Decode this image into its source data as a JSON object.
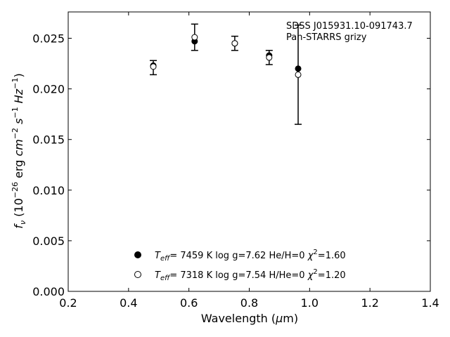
{
  "chart_data": {
    "type": "scatter",
    "title": "",
    "xlabel": "Wavelength (μm)",
    "ylabel": "f_ν (10^-26 erg cm^-2 s^-1 Hz^-1)",
    "xlim": [
      0.2,
      1.4
    ],
    "ylim": [
      0.0,
      0.0276
    ],
    "x_ticks": [
      0.2,
      0.4,
      0.6,
      0.8,
      1.0,
      1.2,
      1.4
    ],
    "x_tick_labels": [
      "0.2",
      "0.4",
      "0.6",
      "0.8",
      "1.0",
      "1.2",
      "1.4"
    ],
    "y_ticks": [
      0.0,
      0.005,
      0.01,
      0.015,
      0.02,
      0.025
    ],
    "y_tick_labels": [
      "0.000",
      "0.005",
      "0.010",
      "0.015",
      "0.020",
      "0.025"
    ],
    "grid": false,
    "annotation": [
      "SDSS J015931.10-091743.7",
      "Pan-STARRS grizy"
    ],
    "observed": {
      "x": [
        0.482,
        0.619,
        0.752,
        0.866,
        0.962
      ],
      "y": [
        0.0221,
        0.0251,
        0.0245,
        0.0231,
        0.0214
      ],
      "err": [
        0.0007,
        0.0013,
        0.0007,
        0.0007,
        0.0049
      ]
    },
    "series": [
      {
        "name": "T_eff= 7459 K log g=7.62 He/H=0 χ²=1.60",
        "marker": "filled-circle",
        "x": [
          0.482,
          0.619,
          0.752,
          0.866,
          0.962
        ],
        "y": [
          0.0223,
          0.0247,
          0.0245,
          0.0233,
          0.022
        ]
      },
      {
        "name": "T_eff= 7318 K log g=7.54 H/He=0 χ²=1.20",
        "marker": "open-circle",
        "x": [
          0.482,
          0.619,
          0.752,
          0.866,
          0.962
        ],
        "y": [
          0.0222,
          0.0251,
          0.0245,
          0.0231,
          0.0214
        ]
      }
    ],
    "legend": {
      "placement": "lower-center",
      "entries": [
        {
          "teff": "7459",
          "logg": "7.62",
          "ratio_label": "He/H",
          "ratio": "0",
          "chi2": "1.60"
        },
        {
          "teff": "7318",
          "logg": "7.54",
          "ratio_label": "H/He",
          "ratio": "0",
          "chi2": "1.20"
        }
      ]
    },
    "colors": {
      "axis": "#000000",
      "marker_fill": "#000000",
      "open_marker_fill": "#ffffff"
    }
  }
}
